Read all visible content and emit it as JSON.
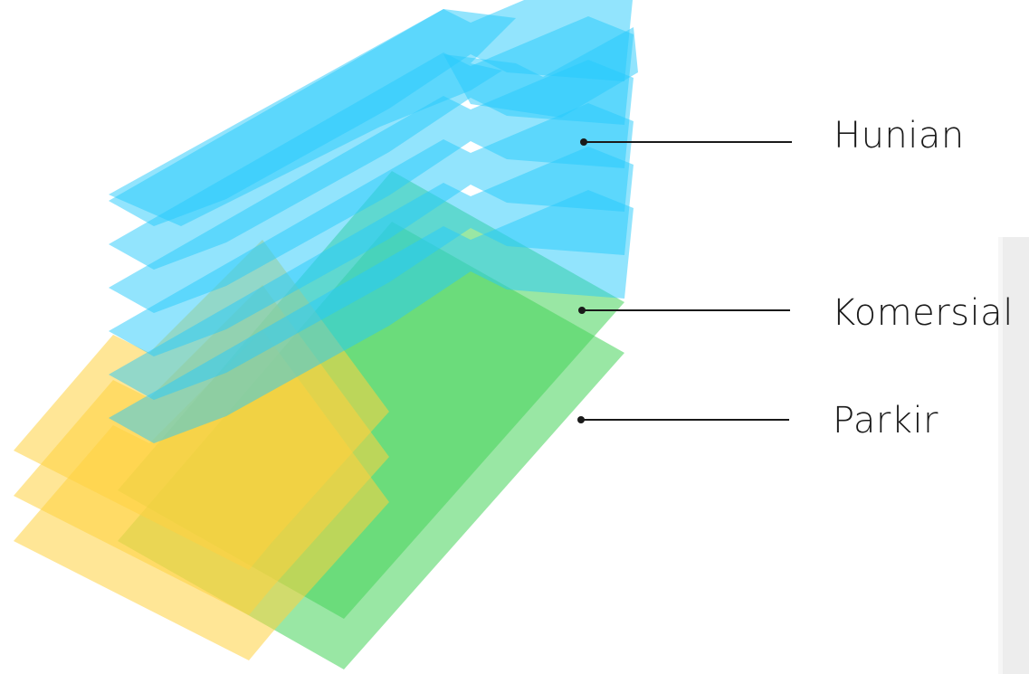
{
  "diagram": {
    "layers": [
      {
        "name": "Hunian",
        "count": 6,
        "color": "#26c9fb"
      },
      {
        "name": "Komersial",
        "count": 3,
        "color": "#ffd23f"
      },
      {
        "name": "Parkir",
        "count": 2,
        "color": "#46d35a"
      }
    ]
  },
  "labels": {
    "hunian": "Hunian",
    "komersial": "Komersial",
    "parkir": "Parkir"
  },
  "colors": {
    "leader_line": "#1a1a1a",
    "panel": "#ededed"
  }
}
